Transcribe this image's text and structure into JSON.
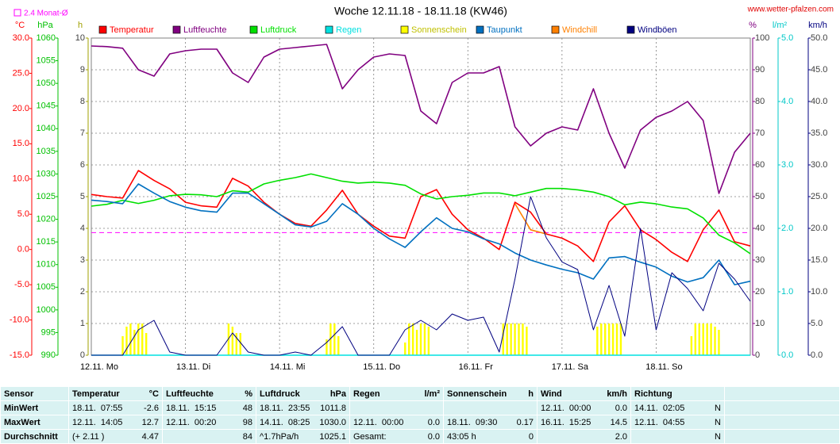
{
  "chart_data": {
    "type": "line",
    "title": "Woche 12.11.18 - 18.11.18 (KW46)",
    "source": "www.wetter-pfalzen.com",
    "x": [
      0,
      4,
      8,
      12,
      16,
      20,
      24,
      28,
      32,
      36,
      40,
      44,
      48,
      52,
      56,
      60,
      64,
      68,
      72,
      76,
      80,
      84,
      88,
      92,
      96,
      100,
      104,
      108,
      112,
      116,
      120,
      124,
      128,
      132,
      136,
      140,
      144,
      148,
      152,
      156,
      160,
      164,
      168
    ],
    "xlim": [
      0,
      168
    ],
    "xticks": [
      {
        "value": 0,
        "label": "12.11. Mo"
      },
      {
        "value": 24,
        "label": "13.11. Di"
      },
      {
        "value": 48,
        "label": "14.11. Mi"
      },
      {
        "value": 72,
        "label": "15.11. Do"
      },
      {
        "value": 96,
        "label": "16.11. Fr"
      },
      {
        "value": 120,
        "label": "17.11. Sa"
      },
      {
        "value": 144,
        "label": "18.11. So"
      }
    ],
    "grid": true,
    "reference_line": {
      "label": "2.4 Monat-Ø",
      "value": 2.4,
      "axis": "temp",
      "color": "#ff00ff"
    },
    "axes": {
      "temp": {
        "label": "°C",
        "lim": [
          -15,
          30
        ],
        "color": "#ff0000",
        "ticks": [
          {
            "value": -15,
            "label": "-15.0"
          },
          {
            "value": -10,
            "label": "-10.0"
          },
          {
            "value": -5,
            "label": "-5.0"
          },
          {
            "value": 0,
            "label": "0.0"
          },
          {
            "value": 5,
            "label": "5.0"
          },
          {
            "value": 10,
            "label": "10.0"
          },
          {
            "value": 15,
            "label": "15.0"
          },
          {
            "value": 20,
            "label": "20.0"
          },
          {
            "value": 25,
            "label": "25.0"
          },
          {
            "value": 30,
            "label": "30.0"
          }
        ]
      },
      "hpa": {
        "label": "hPa",
        "lim": [
          990,
          1060
        ],
        "color": "#00c000",
        "ticks": [
          990,
          995,
          1000,
          1005,
          1010,
          1015,
          1020,
          1025,
          1030,
          1035,
          1040,
          1045,
          1050,
          1055,
          1060
        ]
      },
      "h": {
        "label": "h",
        "lim": [
          0,
          10
        ],
        "color": "#a0a000",
        "ticks": [
          0,
          1,
          2,
          3,
          4,
          5,
          6,
          7,
          8,
          9,
          10
        ]
      },
      "pct": {
        "label": "%",
        "lim": [
          0,
          100
        ],
        "color": "#800080",
        "ticks": [
          0,
          10,
          20,
          30,
          40,
          50,
          60,
          70,
          80,
          90,
          100
        ]
      },
      "rain": {
        "label": "l/m²",
        "lim": [
          0,
          5
        ],
        "color": "#00c8c8",
        "ticks": [
          {
            "value": 0,
            "label": "0.0"
          },
          {
            "value": 1,
            "label": "1.0"
          },
          {
            "value": 2,
            "label": "2.0"
          },
          {
            "value": 3,
            "label": "3.0"
          },
          {
            "value": 4,
            "label": "4.0"
          },
          {
            "value": 5,
            "label": "5.0"
          }
        ]
      },
      "wind": {
        "label": "km/h",
        "lim": [
          0,
          50
        ],
        "color": "#000080",
        "ticks": [
          {
            "value": 0,
            "label": "0.0"
          },
          {
            "value": 5,
            "label": "5.0"
          },
          {
            "value": 10,
            "label": "10.0"
          },
          {
            "value": 15,
            "label": "15.0"
          },
          {
            "value": 20,
            "label": "20.0"
          },
          {
            "value": 25,
            "label": "25.0"
          },
          {
            "value": 30,
            "label": "30.0"
          },
          {
            "value": 35,
            "label": "35.0"
          },
          {
            "value": 40,
            "label": "40.0"
          },
          {
            "value": 45,
            "label": "45.0"
          },
          {
            "value": 50,
            "label": "50.0"
          }
        ]
      }
    },
    "series": [
      {
        "name": "Temperatur",
        "color": "#ff0000",
        "axis": "temp",
        "values": [
          7.8,
          7.5,
          7.3,
          11.2,
          9.8,
          8.6,
          6.7,
          6.2,
          6.0,
          10.1,
          9.0,
          6.7,
          5.0,
          3.7,
          3.3,
          5.6,
          8.4,
          5.0,
          3.3,
          1.9,
          1.6,
          7.5,
          8.5,
          5.0,
          2.8,
          1.6,
          0.0,
          6.7,
          5.3,
          2.2,
          1.6,
          0.5,
          -1.7,
          3.9,
          6.2,
          2.8,
          1.4,
          -0.4,
          -1.7,
          2.8,
          5.6,
          1.1,
          0.5
        ]
      },
      {
        "name": "Luftfeuchte",
        "color": "#800080",
        "axis": "pct",
        "values": [
          97.5,
          97.3,
          96.8,
          90,
          88,
          95,
          96,
          96.5,
          96.5,
          89,
          86,
          94,
          96.5,
          97,
          97.5,
          98,
          84,
          90,
          94,
          95,
          94.5,
          77,
          73,
          86,
          89,
          89,
          91,
          72,
          66,
          70,
          72,
          71,
          84,
          70,
          59,
          71,
          75,
          77,
          80,
          74,
          51,
          64,
          70
        ]
      },
      {
        "name": "Luftdruck",
        "color": "#00e000",
        "axis": "hpa",
        "values": [
          1022.9,
          1023.3,
          1024.2,
          1023.5,
          1024.2,
          1025.2,
          1025.5,
          1025.4,
          1025.0,
          1026.3,
          1026.0,
          1027.8,
          1028.6,
          1029.2,
          1030.0,
          1029.2,
          1028.4,
          1028.0,
          1028.2,
          1028.0,
          1027.5,
          1025.6,
          1024.5,
          1025.0,
          1025.3,
          1025.8,
          1025.8,
          1025.2,
          1026.0,
          1026.8,
          1026.8,
          1026.5,
          1026.0,
          1025.0,
          1023.2,
          1023.8,
          1023.4,
          1022.7,
          1022.3,
          1020.3,
          1016.5,
          1014.8,
          1012.4
        ]
      },
      {
        "name": "Regen",
        "color": "#00e0e0",
        "axis": "rain",
        "x": [
          0,
          168
        ],
        "values": [
          0,
          0
        ]
      },
      {
        "name": "Sonnenschein",
        "color": "#ffff00",
        "axis": "h",
        "type": "bar",
        "x": [
          8,
          9,
          10,
          11,
          12,
          13,
          14,
          35,
          36,
          37,
          38,
          60,
          61,
          62,
          63,
          80,
          81,
          82,
          83,
          84,
          85,
          86,
          105,
          106,
          107,
          108,
          109,
          110,
          111,
          129,
          130,
          131,
          132,
          133,
          134,
          135,
          153,
          154,
          155,
          156,
          157,
          158,
          159,
          160
        ],
        "values": [
          0.6,
          0.9,
          1,
          0.8,
          1,
          1,
          0.7,
          1,
          0.9,
          0.7,
          0.7,
          0.5,
          1,
          1,
          0.6,
          0.4,
          1,
          1,
          0.8,
          1,
          1,
          0.9,
          1,
          1,
          1,
          1,
          1,
          1,
          0.9,
          0.9,
          1,
          1,
          1,
          1,
          1,
          1,
          0.6,
          1,
          1,
          1,
          1,
          1,
          0.9,
          0.8
        ]
      },
      {
        "name": "Taupunkt",
        "color": "#0070c0",
        "axis": "temp",
        "values": [
          7.0,
          6.8,
          6.5,
          9.3,
          8.0,
          6.8,
          6.0,
          5.5,
          5.3,
          8.0,
          8.0,
          6.5,
          5.0,
          3.5,
          3.2,
          4.0,
          6.5,
          5.0,
          3.0,
          1.5,
          0.3,
          2.5,
          4.5,
          3.0,
          2.5,
          1.5,
          0.8,
          -0.5,
          -1.5,
          -2.2,
          -2.8,
          -3.3,
          -4.2,
          -1.2,
          -1.0,
          -1.8,
          -2.5,
          -3.8,
          -4.6,
          -4.0,
          -1.5,
          -5.0,
          -4.5
        ]
      },
      {
        "name": "Windchill",
        "color": "#ff8000",
        "axis": "temp",
        "values": [
          null,
          null,
          null,
          null,
          null,
          null,
          null,
          null,
          null,
          null,
          null,
          null,
          null,
          null,
          null,
          null,
          null,
          null,
          null,
          null,
          null,
          null,
          null,
          null,
          null,
          null,
          null,
          6.5,
          2.8,
          2.2,
          null,
          null,
          null,
          null,
          null,
          null,
          null,
          null,
          null,
          null,
          null,
          null,
          null
        ]
      },
      {
        "name": "Windböen",
        "color": "#000080",
        "axis": "wind",
        "values": [
          0,
          0,
          0,
          4,
          5.5,
          0.5,
          0,
          0,
          0,
          3.5,
          0.5,
          0,
          0,
          0.5,
          0,
          2,
          4.5,
          0,
          0,
          0,
          4,
          5.5,
          4,
          6.5,
          5.5,
          6,
          0.5,
          12,
          25,
          18.5,
          14.7,
          13.5,
          4,
          11,
          3,
          20,
          4,
          13,
          10.5,
          7,
          14.5,
          12,
          8.5
        ]
      }
    ]
  },
  "table": {
    "header": "Sensor",
    "columns": [
      {
        "name": "Temperatur",
        "unit": "°C"
      },
      {
        "name": "Luftfeuchte",
        "unit": "%"
      },
      {
        "name": "Luftdruck",
        "unit": "hPa"
      },
      {
        "name": "Regen",
        "unit": "l/m²"
      },
      {
        "name": "Sonnenschein",
        "unit": "h"
      },
      {
        "name": "Wind",
        "unit": "km/h"
      },
      {
        "name": "Richtung"
      }
    ],
    "rows": [
      {
        "label": "MinWert",
        "cells": [
          {
            "time": "18.11.  07:55",
            "value": "-2.6"
          },
          {
            "time": "18.11.  15:15",
            "value": "48"
          },
          {
            "time": "18.11.  23:55",
            "value": "1011.8"
          },
          {},
          {},
          {
            "time": "12.11.  00:00",
            "value": "0.0"
          },
          {
            "time": "14.11.  02:05",
            "value": "N"
          }
        ]
      },
      {
        "label": "MaxWert",
        "cells": [
          {
            "time": "12.11.  14:05",
            "value": "12.7"
          },
          {
            "time": "12.11.  00:20",
            "value": "98"
          },
          {
            "time": "14.11.  08:25",
            "value": "1030.0"
          },
          {
            "time": "12.11.  00:00",
            "value": "0.0"
          },
          {
            "time": "18.11.  09:30",
            "value": "0.17"
          },
          {
            "time": "16.11.  15:25",
            "value": "14.5"
          },
          {
            "time": "12.11.  04:55",
            "value": "N"
          }
        ]
      },
      {
        "label": "Durchschnitt",
        "cells": [
          {
            "time": "(+ 2.11 )",
            "value": "4.47"
          },
          {
            "value": "84"
          },
          {
            "time": "^1.7hPa/h",
            "value": "1025.1"
          },
          {
            "time": "Gesamt:",
            "value": "0.0"
          },
          {
            "time": "43:05 h",
            "value": "0"
          },
          {
            "value": "2.0"
          },
          {
            "value": "N"
          }
        ]
      }
    ]
  }
}
